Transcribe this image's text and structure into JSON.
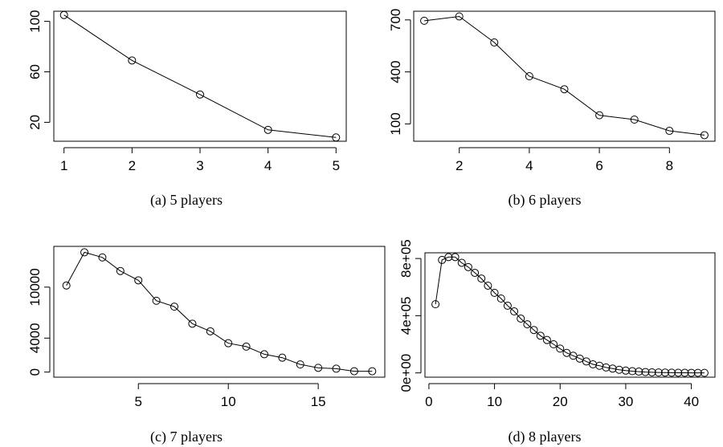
{
  "chart_data": [
    {
      "type": "line",
      "caption": "(a)  5 players",
      "x": [
        1,
        2,
        3,
        4,
        5
      ],
      "y": [
        105,
        69,
        42,
        14,
        8
      ],
      "xlim": [
        0.85,
        5.15
      ],
      "ylim": [
        5,
        108
      ],
      "xticks": [
        1,
        2,
        3,
        4,
        5
      ],
      "yticks": [
        20,
        60,
        100
      ],
      "xtick_labels": [
        "1",
        "2",
        "3",
        "4",
        "5"
      ],
      "ytick_labels": [
        "20",
        "60",
        "100"
      ]
    },
    {
      "type": "line",
      "caption": "(b)  6 players",
      "x": [
        1,
        2,
        3,
        4,
        5,
        6,
        7,
        8,
        9
      ],
      "y": [
        695,
        720,
        570,
        375,
        300,
        150,
        125,
        60,
        35
      ],
      "xlim": [
        0.7,
        9.3
      ],
      "ylim": [
        0,
        750
      ],
      "xticks": [
        2,
        4,
        6,
        8
      ],
      "yticks": [
        100,
        400,
        700
      ],
      "xtick_labels": [
        "2",
        "4",
        "6",
        "8"
      ],
      "ytick_labels": [
        "100",
        "400",
        "700"
      ]
    },
    {
      "type": "line",
      "caption": "(c)  7 players",
      "x": [
        1,
        2,
        3,
        4,
        5,
        6,
        7,
        8,
        9,
        10,
        11,
        12,
        13,
        14,
        15,
        16,
        17,
        18
      ],
      "y": [
        10200,
        14100,
        13500,
        11900,
        10800,
        8400,
        7700,
        5700,
        4800,
        3400,
        3000,
        2100,
        1700,
        900,
        500,
        400,
        100,
        100
      ],
      "xlim": [
        0.3,
        18.7
      ],
      "ylim": [
        -600,
        14800
      ],
      "xticks": [
        5,
        10,
        15
      ],
      "yticks": [
        0,
        4000,
        10000
      ],
      "xtick_labels": [
        "5",
        "10",
        "15"
      ],
      "ytick_labels": [
        "0",
        "4000",
        "10000"
      ]
    },
    {
      "type": "line",
      "caption": "(d)  8 players",
      "x": [
        1,
        2,
        3,
        4,
        5,
        6,
        7,
        8,
        9,
        10,
        11,
        12,
        13,
        14,
        15,
        16,
        17,
        18,
        19,
        20,
        21,
        22,
        23,
        24,
        25,
        26,
        27,
        28,
        29,
        30,
        31,
        32,
        33,
        34,
        35,
        36,
        37,
        38,
        39,
        40,
        41,
        42
      ],
      "y": [
        480000,
        790000,
        810000,
        810000,
        770000,
        740000,
        700000,
        660000,
        610000,
        560000,
        520000,
        470000,
        430000,
        380000,
        340000,
        300000,
        260000,
        230000,
        200000,
        170000,
        140000,
        120000,
        100000,
        80000,
        60000,
        50000,
        38000,
        30000,
        22000,
        16000,
        12000,
        9000,
        6000,
        4000,
        3000,
        2000,
        1500,
        1000,
        700,
        500,
        300,
        200
      ],
      "xlim": [
        -0.6,
        43.6
      ],
      "ylim": [
        -30000,
        840000
      ],
      "xticks": [
        0,
        10,
        20,
        30,
        40
      ],
      "yticks": [
        0,
        400000,
        800000
      ],
      "xtick_labels": [
        "0",
        "10",
        "20",
        "30",
        "40"
      ],
      "ytick_labels": [
        "0e+00",
        "4e+05",
        "8e+05"
      ]
    }
  ]
}
